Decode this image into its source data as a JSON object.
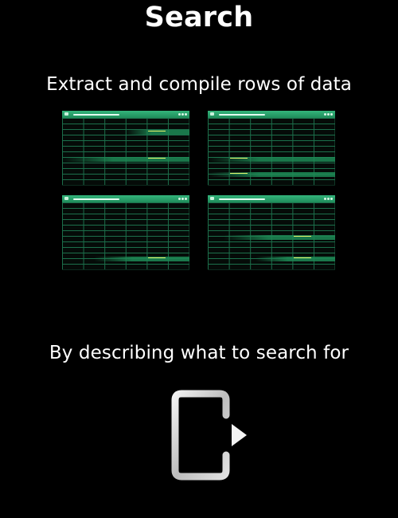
{
  "title": "Search",
  "subtitle_1": "Extract and compile rows of data",
  "subtitle_2": "By describing what to search for",
  "colors": {
    "background": "#000000",
    "text": "#ffffff",
    "sheet_header": "#34b57c",
    "sheet_grid": "#1c6f4b",
    "row_highlight": "#1d8a55",
    "icon": "#d8d8d8"
  },
  "icons": {
    "spreadsheets": "spreadsheet-window-thumbnails",
    "exit": "exit-arrow-icon"
  }
}
